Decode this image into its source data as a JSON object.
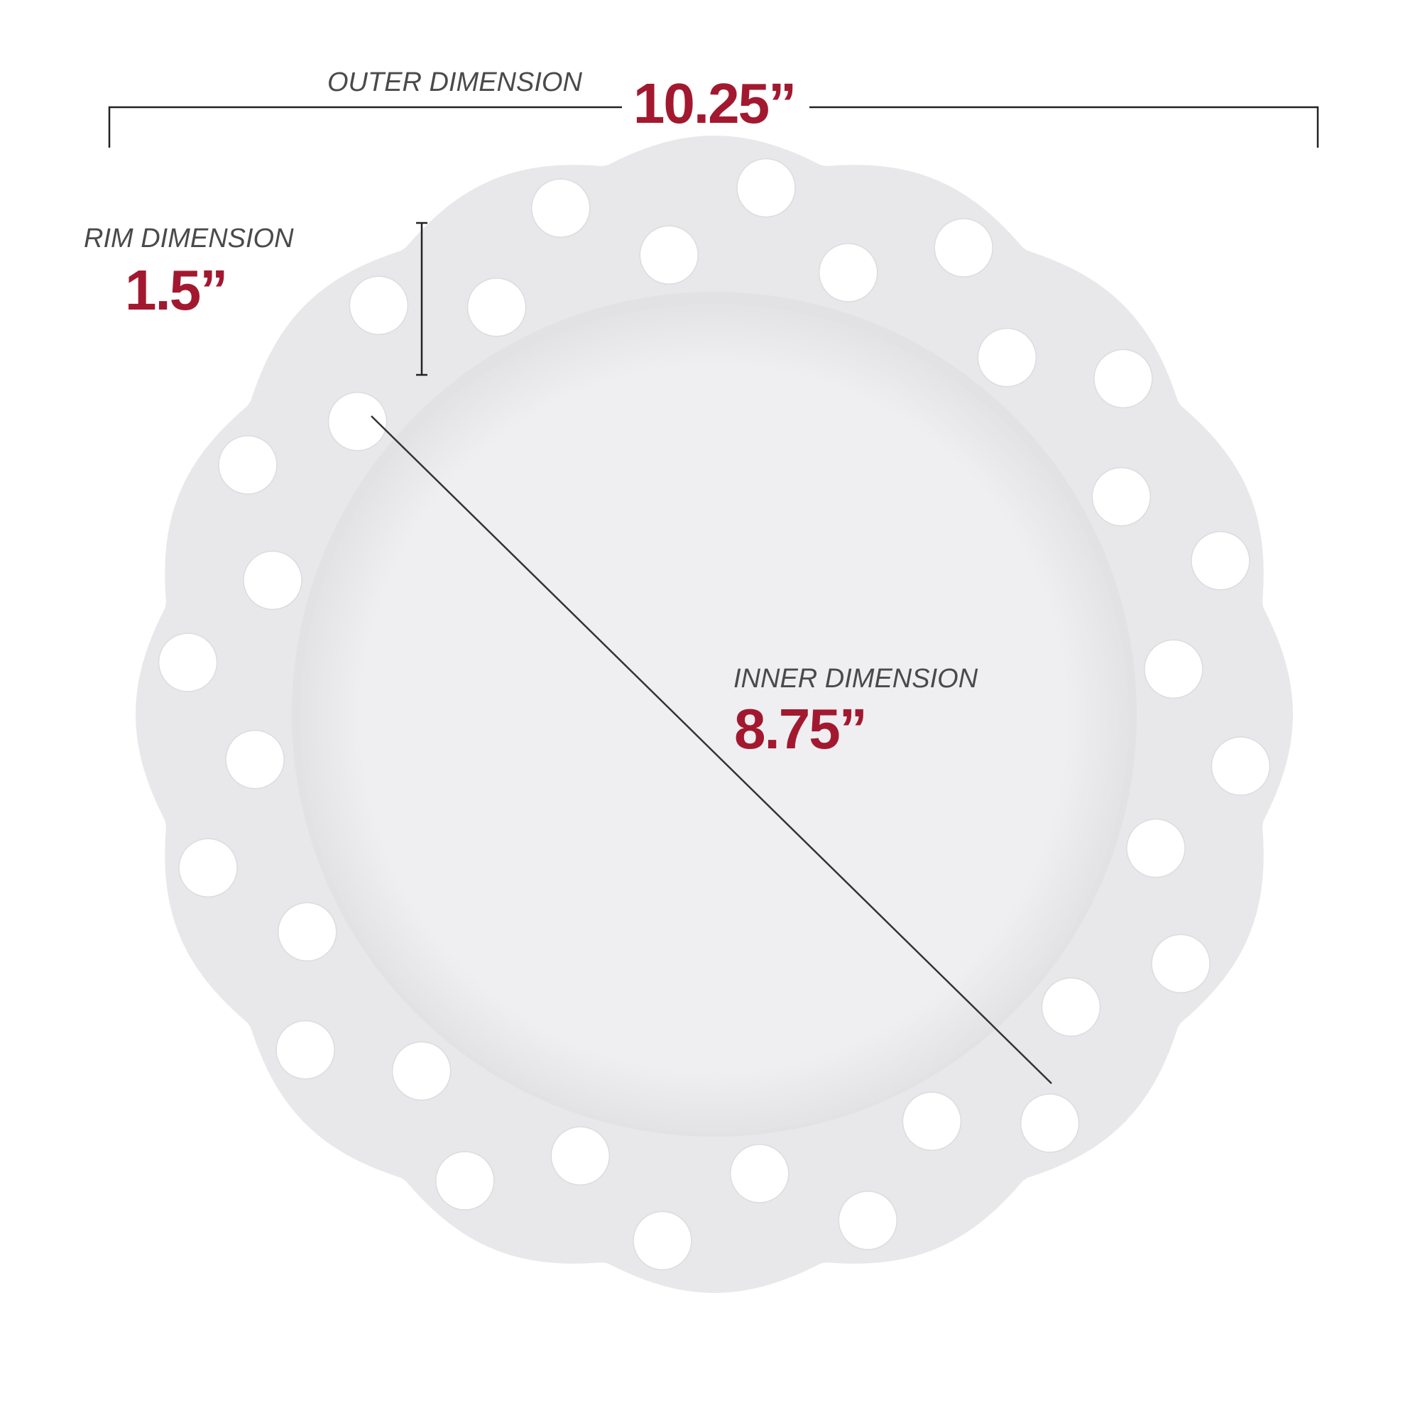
{
  "outer": {
    "label": "OUTER DIMENSION",
    "value": "10.25”"
  },
  "rim": {
    "label": "RIM DIMENSION",
    "value": "1.5”"
  },
  "inner": {
    "label": "INNER DIMENSION",
    "value": "8.75”"
  }
}
